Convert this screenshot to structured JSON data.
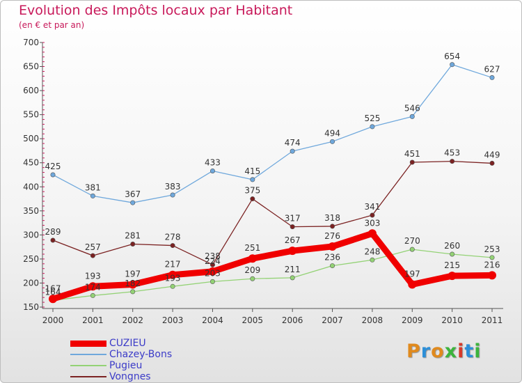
{
  "header": {
    "title": "Evolution des Impôts locaux par Habitant",
    "subtitle": "(en € et par an)"
  },
  "logo": {
    "letters": [
      "P",
      "r",
      "o",
      "x",
      "i",
      "t",
      "i"
    ],
    "colors": [
      "#e08a1e",
      "#2d8fd8",
      "#e08a1e",
      "#3cb43c",
      "#d63a2a",
      "#2d8fd8",
      "#3cb43c"
    ]
  },
  "chart_data": {
    "type": "line",
    "title": "Evolution des Impôts locaux par Habitant",
    "subtitle": "(en € et par an)",
    "xlabel": "",
    "ylabel": "",
    "x": [
      "2000",
      "2001",
      "2002",
      "2003",
      "2004",
      "2005",
      "2006",
      "2007",
      "2008",
      "2009",
      "2010",
      "2011"
    ],
    "ylim": [
      150,
      700
    ],
    "yticks": [
      "150",
      "200",
      "250",
      "300",
      "350",
      "400",
      "450",
      "500",
      "550",
      "600",
      "650",
      "700"
    ],
    "grid": false,
    "legend_position": "bottom-left",
    "series": [
      {
        "name": "CUZIEU",
        "color": "#f00000",
        "values": [
          167,
          193,
          197,
          217,
          224,
          251,
          267,
          276,
          303,
          197,
          215,
          216
        ]
      },
      {
        "name": "Chazey-Bons",
        "color": "#6fa8dc",
        "values": [
          425,
          381,
          367,
          383,
          433,
          415,
          474,
          494,
          525,
          546,
          654,
          627
        ]
      },
      {
        "name": "Pugieu",
        "color": "#93d275",
        "values": [
          164,
          174,
          182,
          193,
          203,
          209,
          211,
          236,
          248,
          270,
          260,
          253
        ]
      },
      {
        "name": "Vongnes",
        "color": "#7b2222",
        "values": [
          289,
          257,
          281,
          278,
          238,
          375,
          317,
          318,
          341,
          451,
          453,
          449
        ]
      }
    ]
  }
}
